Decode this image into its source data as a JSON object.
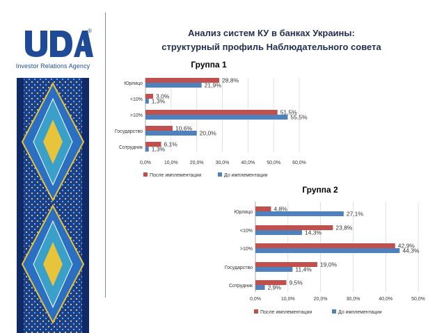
{
  "logo": {
    "wordmark": "UDA",
    "registered": "®",
    "subtitle": "Investor Relations Agency"
  },
  "page": {
    "title_line1": "Анализ систем КУ в банках Украины:",
    "title_line2": "структурный профиль Наблюдательного совета"
  },
  "colors": {
    "after": "#c0504d",
    "before": "#4f81bd",
    "logo_blue": "#1e4a96"
  },
  "chart_data": [
    {
      "type": "bar",
      "orientation": "horizontal",
      "title": "Группа 1",
      "categories": [
        "Юрлицо",
        "<10%",
        ">10%",
        "Государство",
        "Сотрудник"
      ],
      "series": [
        {
          "name": "После имплементации",
          "values": [
            28.8,
            3.0,
            51.5,
            10.6,
            6.1
          ],
          "labels": [
            "28,8%",
            "3,0%",
            "51,5%",
            "10,6%",
            "6,1%"
          ]
        },
        {
          "name": "До имплементации",
          "values": [
            21.9,
            1.3,
            55.5,
            20.0,
            1.3
          ],
          "labels": [
            "21,9%",
            "1,3%",
            "55,5%",
            "20,0%",
            "1,3%"
          ]
        }
      ],
      "xlim": [
        0,
        60
      ],
      "ticks": [
        0,
        10,
        20,
        30,
        40,
        50,
        60
      ],
      "tick_labels": [
        "0,0%",
        "10,0%",
        "20,0%",
        "30,0%",
        "40,0%",
        "50,0%",
        "60,0%"
      ],
      "legend": "bottom"
    },
    {
      "type": "bar",
      "orientation": "horizontal",
      "title": "Группа 2",
      "categories": [
        "Юрлицо",
        "<10%",
        ">10%",
        "Государство",
        "Сотрудник"
      ],
      "series": [
        {
          "name": "После имплементации",
          "values": [
            4.8,
            23.8,
            42.9,
            19.0,
            9.5
          ],
          "labels": [
            "4,8%",
            "23,8%",
            "42,9%",
            "19,0%",
            "9,5%"
          ]
        },
        {
          "name": "До имплементации",
          "values": [
            27.1,
            14.3,
            44.3,
            11.4,
            2.9
          ],
          "labels": [
            "27,1%",
            "14,3%",
            "44,3%",
            "11,4%",
            "2,9%"
          ]
        }
      ],
      "xlim": [
        0,
        50
      ],
      "ticks": [
        0,
        10,
        20,
        30,
        40,
        50
      ],
      "tick_labels": [
        "0,0%",
        "10,0%",
        "20,0%",
        "30,0%",
        "40,0%",
        "50,0%"
      ],
      "legend": "bottom"
    }
  ]
}
